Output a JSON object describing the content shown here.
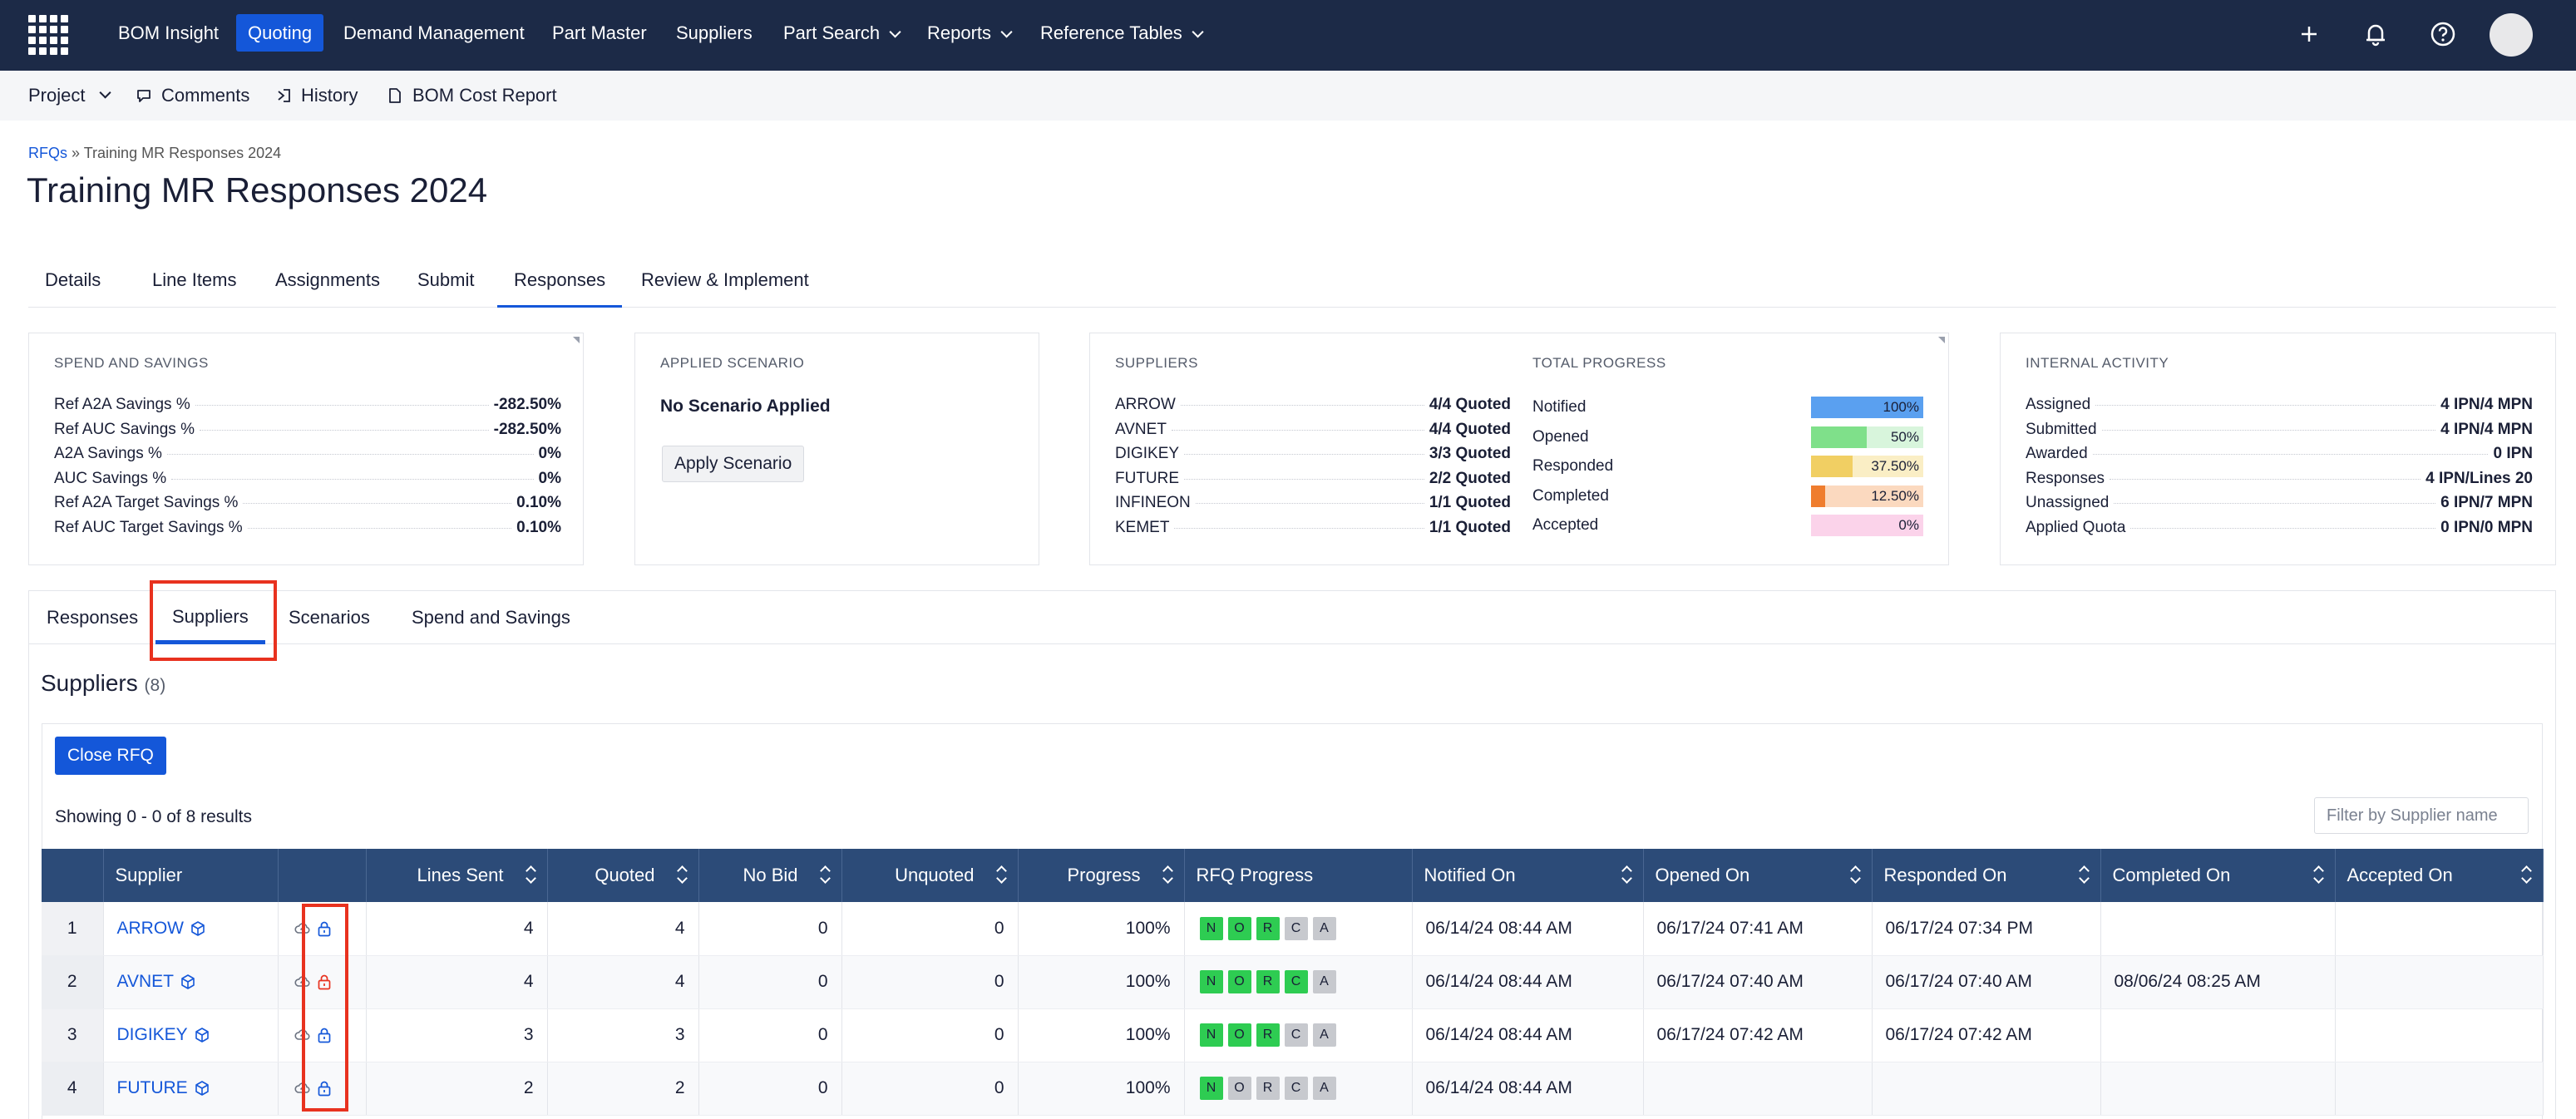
{
  "nav": {
    "items": [
      {
        "label": "BOM Insight",
        "active": false,
        "dropdown": false
      },
      {
        "label": "Quoting",
        "active": true,
        "dropdown": false
      },
      {
        "label": "Demand Management",
        "active": false,
        "dropdown": false
      },
      {
        "label": "Part Master",
        "active": false,
        "dropdown": false
      },
      {
        "label": "Suppliers",
        "active": false,
        "dropdown": false
      },
      {
        "label": "Part Search",
        "active": false,
        "dropdown": true
      },
      {
        "label": "Reports",
        "active": false,
        "dropdown": true
      },
      {
        "label": "Reference Tables",
        "active": false,
        "dropdown": true
      }
    ],
    "icons": [
      "plus-icon",
      "bell-icon",
      "help-icon",
      "avatar"
    ]
  },
  "subnav": {
    "project": "Project",
    "comments": "Comments",
    "history": "History",
    "bom_cost_report": "BOM Cost Report"
  },
  "breadcrumb": {
    "root": "RFQs",
    "separator": "»",
    "current": "Training MR Responses 2024"
  },
  "title": "Training MR Responses 2024",
  "tabs": [
    {
      "label": "Details",
      "active": false
    },
    {
      "label": "Line Items",
      "active": false
    },
    {
      "label": "Assignments",
      "active": false
    },
    {
      "label": "Submit",
      "active": false
    },
    {
      "label": "Responses",
      "active": true
    },
    {
      "label": "Review & Implement",
      "active": false
    }
  ],
  "spend": {
    "label": "SPEND AND SAVINGS",
    "rows": [
      {
        "k": "Ref A2A Savings %",
        "v": "-282.50%"
      },
      {
        "k": "Ref AUC Savings %",
        "v": "-282.50%"
      },
      {
        "k": "A2A Savings %",
        "v": "0%"
      },
      {
        "k": "AUC Savings %",
        "v": "0%"
      },
      {
        "k": "Ref A2A Target Savings %",
        "v": "0.10%"
      },
      {
        "k": "Ref AUC Target Savings %",
        "v": "0.10%"
      }
    ]
  },
  "scenario": {
    "label": "APPLIED SCENARIO",
    "status": "No Scenario Applied",
    "button": "Apply Scenario"
  },
  "suppliers_card": {
    "label": "SUPPLIERS",
    "rows": [
      {
        "k": "ARROW",
        "v": "4/4 Quoted"
      },
      {
        "k": "AVNET",
        "v": "4/4 Quoted"
      },
      {
        "k": "DIGIKEY",
        "v": "3/3 Quoted"
      },
      {
        "k": "FUTURE",
        "v": "2/2 Quoted"
      },
      {
        "k": "INFINEON",
        "v": "1/1 Quoted"
      },
      {
        "k": "KEMET",
        "v": "1/1 Quoted"
      }
    ]
  },
  "progress": {
    "label": "TOTAL PROGRESS",
    "rows": [
      {
        "k": "Notified",
        "text": "100%",
        "value": 1.0,
        "fill": "#5aa0f0",
        "bg": "#cfe2fb"
      },
      {
        "k": "Opened",
        "text": "50%",
        "value": 0.5,
        "fill": "#7fe08a",
        "bg": "#d8f5dc"
      },
      {
        "k": "Responded",
        "text": "37.50%",
        "value": 0.375,
        "fill": "#f1cf63",
        "bg": "#faeec5"
      },
      {
        "k": "Completed",
        "text": "12.50%",
        "value": 0.125,
        "fill": "#ef7d2e",
        "bg": "#fbd9bf"
      },
      {
        "k": "Accepted",
        "text": "0%",
        "value": 0.0,
        "fill": "#f28cc8",
        "bg": "#fbd3ea"
      }
    ]
  },
  "internal": {
    "label": "INTERNAL ACTIVITY",
    "rows": [
      {
        "k": "Assigned",
        "v": "4 IPN/4 MPN"
      },
      {
        "k": "Submitted",
        "v": "4 IPN/4 MPN"
      },
      {
        "k": "Awarded",
        "v": "0 IPN"
      },
      {
        "k": "Responses",
        "v": "4 IPN/Lines 20"
      },
      {
        "k": "Unassigned",
        "v": "6 IPN/7 MPN"
      },
      {
        "k": "Applied Quota",
        "v": "0 IPN/0 MPN"
      }
    ]
  },
  "sub_tabs": [
    {
      "label": "Responses",
      "active": false
    },
    {
      "label": "Suppliers",
      "active": true
    },
    {
      "label": "Scenarios",
      "active": false
    },
    {
      "label": "Spend and Savings",
      "active": false
    }
  ],
  "suppliers_section": {
    "heading": "Suppliers",
    "count": "(8)",
    "close_button": "Close RFQ",
    "showing": "Showing 0 - 0 of 8 results",
    "filter_placeholder": "Filter by Supplier name"
  },
  "table": {
    "columns": [
      "",
      "Supplier",
      "",
      "Lines Sent",
      "Quoted",
      "No Bid",
      "Unquoted",
      "Progress",
      "RFQ Progress",
      "Notified On",
      "Opened On",
      "Responded On",
      "Completed On",
      "Accepted On"
    ],
    "rows": [
      {
        "idx": "1",
        "supplier": "ARROW",
        "lock": "blue",
        "lines_sent": "4",
        "quoted": "4",
        "no_bid": "0",
        "unquoted": "0",
        "progress": "100%",
        "flags": [
          {
            "l": "N",
            "on": true
          },
          {
            "l": "O",
            "on": true
          },
          {
            "l": "R",
            "on": true
          },
          {
            "l": "C",
            "on": false
          },
          {
            "l": "A",
            "on": false
          }
        ],
        "notified": "06/14/24 08:44 AM",
        "opened": "06/17/24 07:41 AM",
        "responded": "06/17/24 07:34 PM",
        "completed": "",
        "accepted": ""
      },
      {
        "idx": "2",
        "supplier": "AVNET",
        "lock": "red",
        "lines_sent": "4",
        "quoted": "4",
        "no_bid": "0",
        "unquoted": "0",
        "progress": "100%",
        "flags": [
          {
            "l": "N",
            "on": true
          },
          {
            "l": "O",
            "on": true
          },
          {
            "l": "R",
            "on": true
          },
          {
            "l": "C",
            "on": true
          },
          {
            "l": "A",
            "on": false
          }
        ],
        "notified": "06/14/24 08:44 AM",
        "opened": "06/17/24 07:40 AM",
        "responded": "06/17/24 07:40 AM",
        "completed": "08/06/24 08:25 AM",
        "accepted": ""
      },
      {
        "idx": "3",
        "supplier": "DIGIKEY",
        "lock": "blue",
        "lines_sent": "3",
        "quoted": "3",
        "no_bid": "0",
        "unquoted": "0",
        "progress": "100%",
        "flags": [
          {
            "l": "N",
            "on": true
          },
          {
            "l": "O",
            "on": true
          },
          {
            "l": "R",
            "on": true
          },
          {
            "l": "C",
            "on": false
          },
          {
            "l": "A",
            "on": false
          }
        ],
        "notified": "06/14/24 08:44 AM",
        "opened": "06/17/24 07:42 AM",
        "responded": "06/17/24 07:42 AM",
        "completed": "",
        "accepted": ""
      },
      {
        "idx": "4",
        "supplier": "FUTURE",
        "lock": "blue",
        "lines_sent": "2",
        "quoted": "2",
        "no_bid": "0",
        "unquoted": "0",
        "progress": "100%",
        "flags": [
          {
            "l": "N",
            "on": true
          },
          {
            "l": "O",
            "on": false
          },
          {
            "l": "R",
            "on": false
          },
          {
            "l": "C",
            "on": false
          },
          {
            "l": "A",
            "on": false
          }
        ],
        "notified": "06/14/24 08:44 AM",
        "opened": "",
        "responded": "",
        "completed": "",
        "accepted": ""
      }
    ]
  }
}
